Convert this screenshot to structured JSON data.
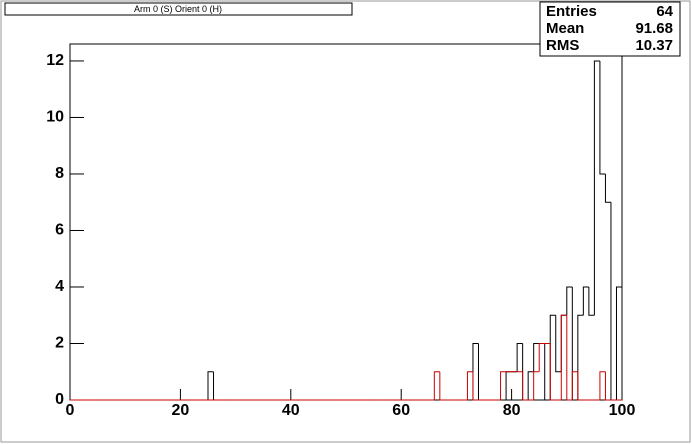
{
  "chart_data": {
    "type": "histogram",
    "title": "Arm 0 (S) Orient 0 (H)",
    "bins": [
      0,
      1,
      2,
      3,
      4,
      5,
      6,
      7,
      8,
      9,
      10,
      11,
      12,
      13,
      14,
      15,
      16,
      17,
      18,
      19,
      20,
      21,
      22,
      23,
      24,
      25,
      26,
      27,
      28,
      29,
      30,
      31,
      32,
      33,
      34,
      35,
      36,
      37,
      38,
      39,
      40,
      41,
      42,
      43,
      44,
      45,
      46,
      47,
      48,
      49,
      50,
      51,
      52,
      53,
      54,
      55,
      56,
      57,
      58,
      59,
      60,
      61,
      62,
      63,
      64,
      65,
      66,
      67,
      68,
      69,
      70,
      71,
      72,
      73,
      74,
      75,
      76,
      77,
      78,
      79,
      80,
      81,
      82,
      83,
      84,
      85,
      86,
      87,
      88,
      89,
      90,
      91,
      92,
      93,
      94,
      95,
      96,
      97,
      98,
      99,
      100
    ],
    "series": [
      {
        "color": "#000000",
        "values": [
          0,
          0,
          0,
          0,
          0,
          0,
          0,
          0,
          0,
          0,
          0,
          0,
          0,
          0,
          0,
          0,
          0,
          0,
          0,
          0,
          0,
          0,
          0,
          0,
          0,
          1,
          0,
          0,
          0,
          0,
          0,
          0,
          0,
          0,
          0,
          0,
          0,
          0,
          0,
          0,
          0,
          0,
          0,
          0,
          0,
          0,
          0,
          0,
          0,
          0,
          0,
          0,
          0,
          0,
          0,
          0,
          0,
          0,
          0,
          0,
          0,
          0,
          0,
          0,
          0,
          0,
          0,
          0,
          0,
          0,
          0,
          0,
          0,
          2,
          0,
          0,
          0,
          0,
          0,
          1,
          1,
          2,
          0,
          1,
          2,
          2,
          0,
          3,
          1,
          3,
          4,
          0,
          3,
          4,
          3,
          12,
          8,
          7,
          0,
          4
        ]
      },
      {
        "color": "#cc0000",
        "values": [
          0,
          0,
          0,
          0,
          0,
          0,
          0,
          0,
          0,
          0,
          0,
          0,
          0,
          0,
          0,
          0,
          0,
          0,
          0,
          0,
          0,
          0,
          0,
          0,
          0,
          0,
          0,
          0,
          0,
          0,
          0,
          0,
          0,
          0,
          0,
          0,
          0,
          0,
          0,
          0,
          0,
          0,
          0,
          0,
          0,
          0,
          0,
          0,
          0,
          0,
          0,
          0,
          0,
          0,
          0,
          0,
          0,
          0,
          0,
          0,
          0,
          0,
          0,
          0,
          0,
          0,
          1,
          0,
          0,
          0,
          0,
          0,
          1,
          0,
          0,
          0,
          0,
          0,
          1,
          1,
          1,
          1,
          0,
          0,
          1,
          2,
          2,
          0,
          0,
          3,
          0,
          1,
          0,
          0,
          0,
          0,
          1,
          0,
          0,
          0
        ]
      }
    ],
    "xlim": [
      0,
      100
    ],
    "xticks": [
      0,
      20,
      40,
      60,
      80,
      100
    ],
    "ylim": [
      0,
      12.6
    ],
    "yticks": [
      0,
      2,
      4,
      6,
      8,
      10,
      12
    ],
    "stats": [
      {
        "label": "Entries",
        "value": 64
      },
      {
        "label": "Mean",
        "value": 91.68
      },
      {
        "label": "RMS",
        "value": 10.37
      }
    ]
  }
}
